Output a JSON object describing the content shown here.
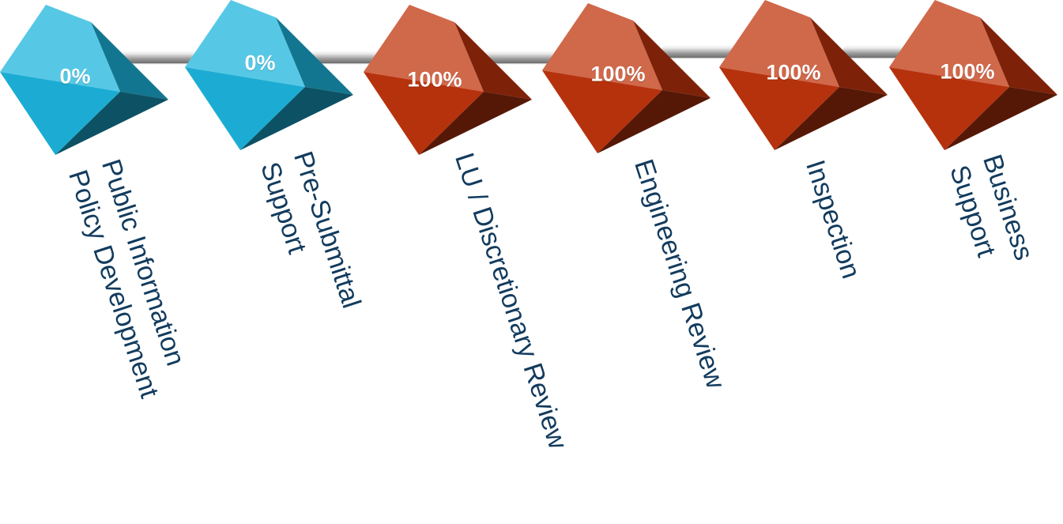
{
  "colors": {
    "not_started": "#1db5de",
    "complete": "#c0350e",
    "label_text": "#123b5e"
  },
  "steps": [
    {
      "percent": "0%",
      "status": "not_started",
      "label_lines": [
        "Public Information",
        "Policy Development"
      ]
    },
    {
      "percent": "0%",
      "status": "not_started",
      "label_lines": [
        "Pre-Submittal",
        "Support"
      ]
    },
    {
      "percent": "100%",
      "status": "complete",
      "label_lines": [
        "LU / Discretionary  Review"
      ]
    },
    {
      "percent": "100%",
      "status": "complete",
      "label_lines": [
        "Engineering Review"
      ]
    },
    {
      "percent": "100%",
      "status": "complete",
      "label_lines": [
        "Inspection"
      ]
    },
    {
      "percent": "100%",
      "status": "complete",
      "label_lines": [
        "Business",
        "Support"
      ]
    }
  ]
}
